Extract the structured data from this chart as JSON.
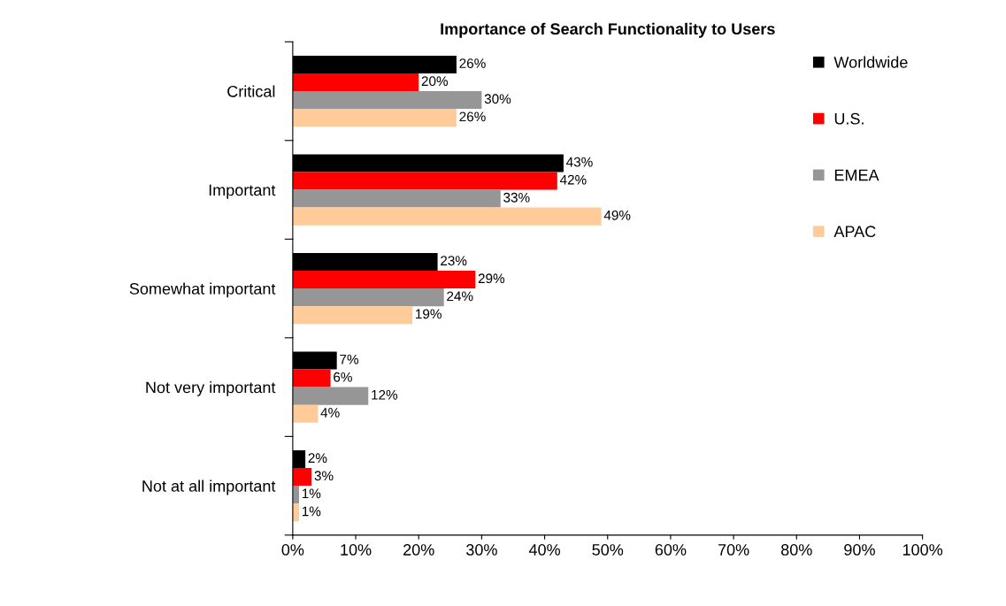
{
  "chart_data": {
    "type": "bar",
    "orientation": "horizontal",
    "title": "Importance of Search Functionality to Users",
    "categories": [
      "Critical",
      "Important",
      "Somewhat important",
      "Not very important",
      "Not at all important"
    ],
    "series": [
      {
        "name": "Worldwide",
        "color": "#000000",
        "values": [
          26,
          43,
          23,
          7,
          2
        ],
        "value_labels": [
          "26%",
          "43%",
          "23%",
          "7%",
          "2%"
        ]
      },
      {
        "name": "U.S.",
        "color": "#ff0000",
        "values": [
          20,
          42,
          29,
          6,
          3
        ],
        "value_labels": [
          "20%",
          "42%",
          "29%",
          "6%",
          "3%"
        ]
      },
      {
        "name": "EMEA",
        "color": "#969696",
        "values": [
          30,
          33,
          24,
          12,
          1
        ],
        "value_labels": [
          "30%",
          "33%",
          "24%",
          "12%",
          "1%"
        ]
      },
      {
        "name": "APAC",
        "color": "#ffcc99",
        "values": [
          26,
          49,
          19,
          4,
          1
        ],
        "value_labels": [
          "26%",
          "49%",
          "19%",
          "4%",
          "1%"
        ]
      }
    ],
    "xlim": [
      0,
      100
    ],
    "xticks": [
      {
        "value": 0,
        "label": "0%"
      },
      {
        "value": 10,
        "label": "10%"
      },
      {
        "value": 20,
        "label": "20%"
      },
      {
        "value": 30,
        "label": "30%"
      },
      {
        "value": 40,
        "label": "40%"
      },
      {
        "value": 50,
        "label": "50%"
      },
      {
        "value": 60,
        "label": "60%"
      },
      {
        "value": 70,
        "label": "70%"
      },
      {
        "value": 80,
        "label": "80%"
      },
      {
        "value": 90,
        "label": "90%"
      },
      {
        "value": 100,
        "label": "100%"
      }
    ],
    "legend": "top right",
    "grid": false
  }
}
